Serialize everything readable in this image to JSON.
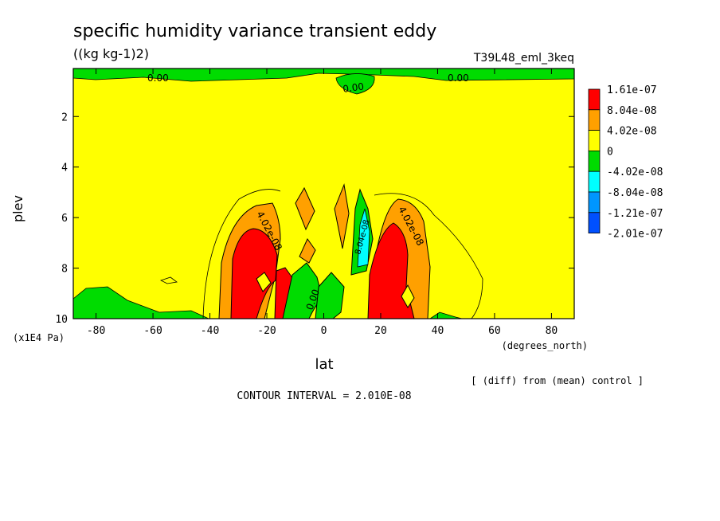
{
  "chart_data": {
    "type": "contour",
    "title": "specific humidity variance transient eddy",
    "units": "((kg kg-1)2)",
    "experiment": "T39L48_eml_3keq",
    "xlabel": "lat",
    "xunits": "(degrees_north)",
    "ylabel": "plev",
    "yunits": "(x1E4 Pa)",
    "xlim": [
      -88,
      88
    ],
    "ylim": [
      0.1,
      10
    ],
    "y_inverted": true,
    "xticks": [
      -80,
      -60,
      -40,
      -20,
      0,
      20,
      40,
      60,
      80
    ],
    "xtick_labels": [
      "-80",
      "-60",
      "-40",
      "-20",
      "0",
      "20",
      "40",
      "60",
      "80"
    ],
    "yticks": [
      2,
      4,
      6,
      8,
      10
    ],
    "ytick_labels": [
      "2",
      "4",
      "6",
      "8",
      "10"
    ],
    "legend": {
      "placement": "right",
      "levels": [
        {
          "label": "1.61e-07",
          "color": "#ff0000"
        },
        {
          "label": "8.04e-08",
          "color": "#ffa000"
        },
        {
          "label": "4.02e-08",
          "color": "#ffff00"
        },
        {
          "label": "0",
          "color": "#00dc00"
        },
        {
          "label": "-4.02e-08",
          "color": "#00ffff"
        },
        {
          "label": "-8.04e-08",
          "color": "#0096ff"
        },
        {
          "label": "-1.21e-07",
          "color": "#0050ff"
        },
        {
          "label": "-2.01e-07",
          "color": ""
        }
      ]
    },
    "contour_labels": [
      "0.00",
      "0.00",
      "0.00",
      "4.02e-08",
      "4.02e-08",
      "0.00",
      "8.04e-08"
    ],
    "contour_interval": "CONTOUR INTERVAL = 2.010E-08",
    "note": "[ (diff) from (mean) control ]",
    "colors": {
      "yellow": "#ffff00",
      "green": "#00dc00",
      "orange": "#ffa000",
      "red": "#ff0000",
      "cyan": "#00ffff"
    }
  }
}
